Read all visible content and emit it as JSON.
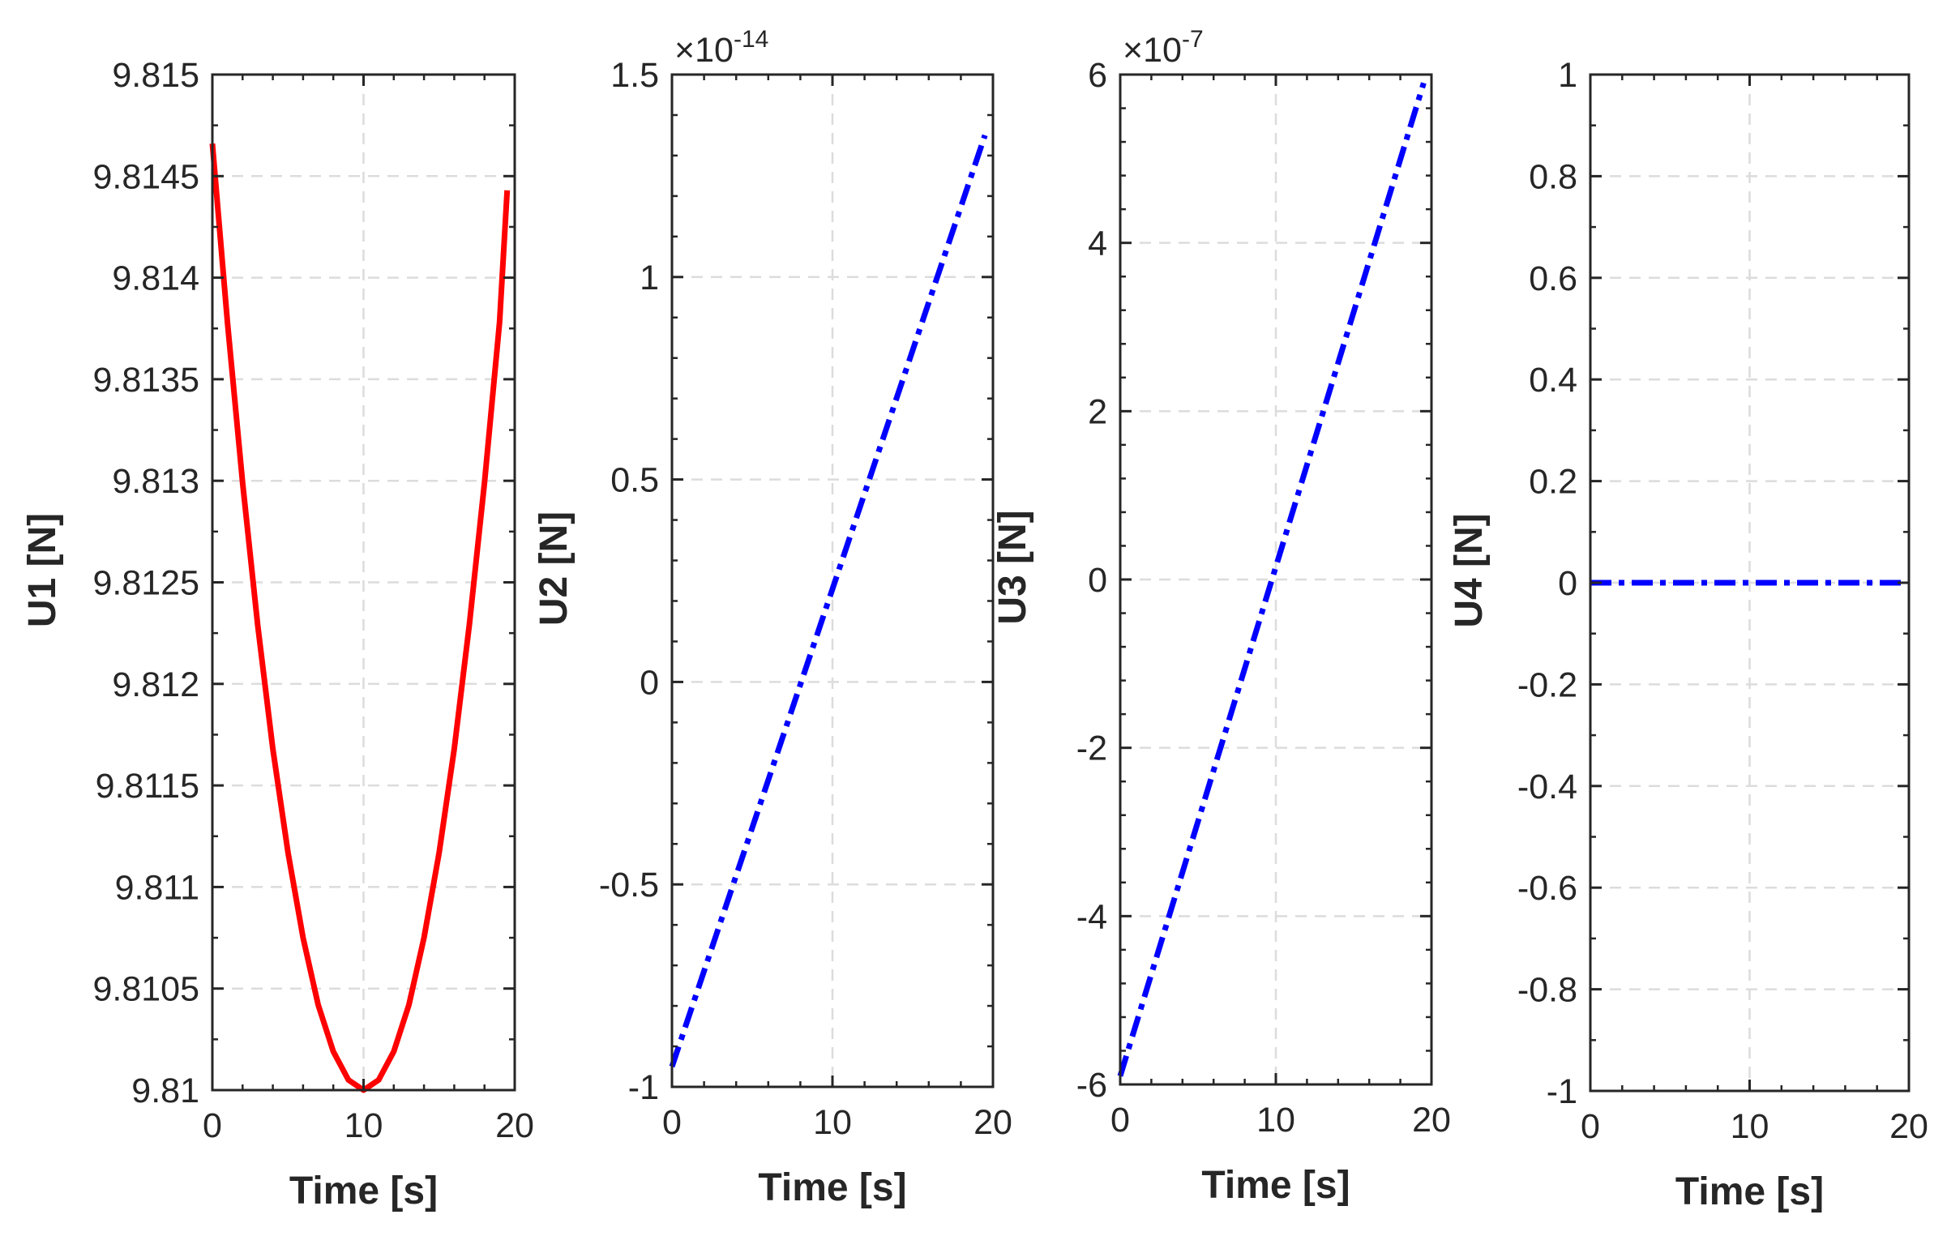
{
  "chart_data": [
    {
      "type": "line",
      "xlabel": "Time [s]",
      "ylabel": "U1 [N]",
      "xlim": [
        0,
        20
      ],
      "ylim": [
        9.81,
        9.815
      ],
      "xticks": [
        0,
        10,
        20
      ],
      "xtick_labels": [
        "0",
        "10",
        "20"
      ],
      "yticks": [
        9.81,
        9.8105,
        9.811,
        9.8115,
        9.812,
        9.8125,
        9.813,
        9.8135,
        9.814,
        9.8145,
        9.815
      ],
      "ytick_labels": [
        "9.81",
        "9.8105",
        "9.811",
        "9.8115",
        "9.812",
        "9.8125",
        "9.813",
        "9.8135",
        "9.814",
        "9.8145",
        "9.815"
      ],
      "exponent": null,
      "grid": true,
      "series": [
        {
          "name": "U1",
          "color": "#ff0000",
          "style": "solid",
          "x": [
            0,
            1,
            2,
            3,
            4,
            5,
            6,
            7,
            8,
            9,
            10,
            11,
            12,
            13,
            14,
            15,
            16,
            17,
            18,
            19,
            19.5
          ],
          "y": [
            9.81466,
            9.81378,
            9.81299,
            9.81229,
            9.81168,
            9.81117,
            9.81075,
            9.81042,
            9.81019,
            9.81005,
            9.81,
            9.81005,
            9.81019,
            9.81042,
            9.81075,
            9.81117,
            9.81168,
            9.81229,
            9.81299,
            9.81378,
            9.81443
          ]
        }
      ]
    },
    {
      "type": "line",
      "xlabel": "Time [s]",
      "ylabel": "U2 [N]",
      "xlim": [
        0,
        20
      ],
      "ylim": [
        -1,
        1.5
      ],
      "xticks": [
        0,
        10,
        20
      ],
      "xtick_labels": [
        "0",
        "10",
        "20"
      ],
      "yticks": [
        -1,
        -0.5,
        0,
        0.5,
        1,
        1.5
      ],
      "ytick_labels": [
        "-1",
        "-0.5",
        "0",
        "0.5",
        "1",
        "1.5"
      ],
      "exponent": {
        "base": "×10",
        "power": "-14"
      },
      "grid": true,
      "series": [
        {
          "name": "U2",
          "color": "#0000ff",
          "style": "dashdot",
          "x": [
            0,
            19.5
          ],
          "y": [
            -0.95,
            1.35
          ]
        }
      ]
    },
    {
      "type": "line",
      "xlabel": "Time [s]",
      "ylabel": "U3 [N]",
      "xlim": [
        0,
        20
      ],
      "ylim": [
        -6,
        6
      ],
      "xticks": [
        0,
        10,
        20
      ],
      "xtick_labels": [
        "0",
        "10",
        "20"
      ],
      "yticks": [
        -6,
        -4,
        -2,
        0,
        2,
        4,
        6
      ],
      "ytick_labels": [
        "-6",
        "-4",
        "-2",
        "0",
        "2",
        "4",
        "6"
      ],
      "exponent": {
        "base": "×10",
        "power": "-7"
      },
      "grid": true,
      "series": [
        {
          "name": "U3",
          "color": "#0000ff",
          "style": "dashdot",
          "x": [
            0,
            19.5
          ],
          "y": [
            -5.9,
            5.9
          ]
        }
      ]
    },
    {
      "type": "line",
      "xlabel": "Time [s]",
      "ylabel": "U4 [N]",
      "xlim": [
        0,
        20
      ],
      "ylim": [
        -1,
        1
      ],
      "xticks": [
        0,
        10,
        20
      ],
      "xtick_labels": [
        "0",
        "10",
        "20"
      ],
      "yticks": [
        -1,
        -0.8,
        -0.6,
        -0.4,
        -0.2,
        0,
        0.2,
        0.4,
        0.6,
        0.8,
        1
      ],
      "ytick_labels": [
        "-1",
        "-0.8",
        "-0.6",
        "-0.4",
        "-0.2",
        "0",
        "0.2",
        "0.4",
        "0.6",
        "0.8",
        "1"
      ],
      "exponent": null,
      "grid": true,
      "series": [
        {
          "name": "U4",
          "color": "#0000ff",
          "style": "dashdot",
          "x": [
            0,
            20
          ],
          "y": [
            0,
            0
          ]
        }
      ]
    }
  ]
}
